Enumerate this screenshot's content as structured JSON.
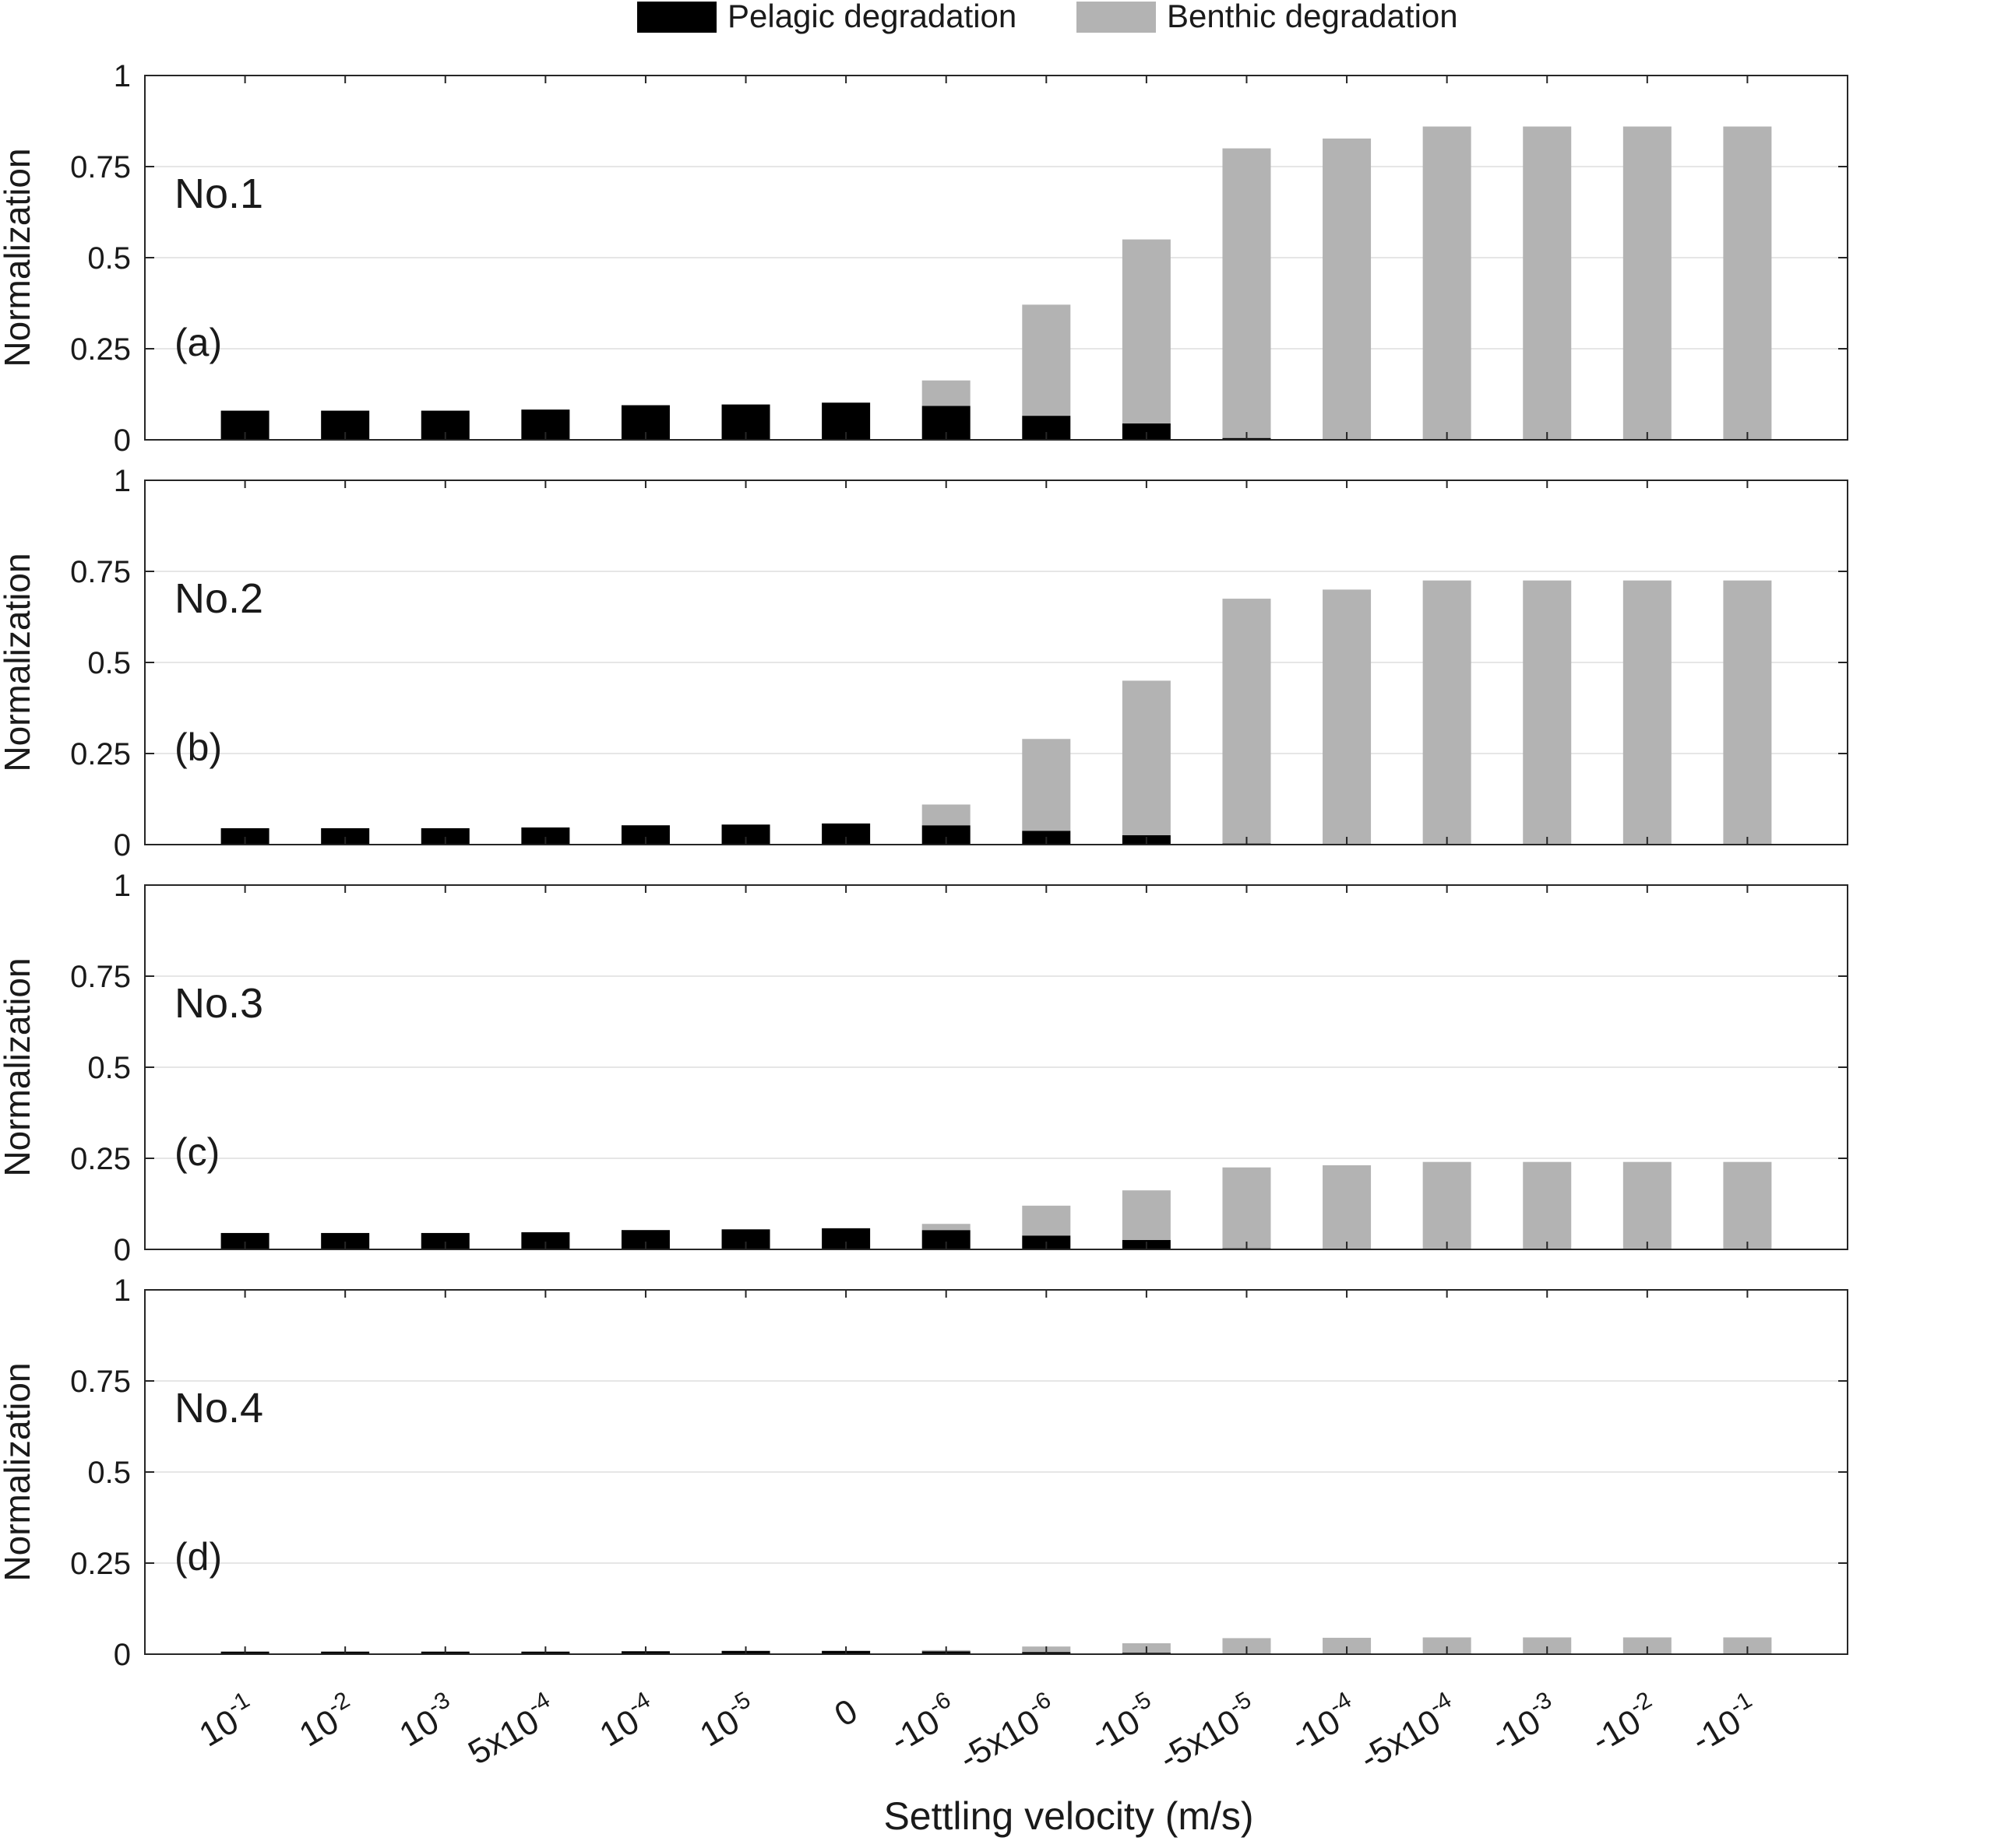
{
  "legend": {
    "placement": "top-center",
    "items": [
      {
        "label": "Pelagic degradation",
        "color": "#000000"
      },
      {
        "label": "Benthic degradation",
        "color": "#b3b3b3"
      }
    ]
  },
  "xlabel": "Settling velocity (m/s)",
  "chart_data": [
    {
      "type": "bar",
      "stacked": true,
      "panel_label": "(a)",
      "case_label": "No.1",
      "ylabel": "Normalization",
      "ylim": [
        0,
        1
      ],
      "yticks": [
        "0",
        "0.25",
        "0.5",
        "0.75",
        "1"
      ],
      "grid": "horizontal",
      "categories": [
        "10^-1",
        "10^-2",
        "10^-3",
        "5x10^-4",
        "10^-4",
        "10^-5",
        "0",
        "-10^-6",
        "-5x10^-6",
        "-10^-5",
        "-5x10^-5",
        "-10^-4",
        "-5x10^-4",
        "-10^-3",
        "-10^-2",
        "-10^-1"
      ],
      "series": [
        {
          "name": "Pelagic degradation",
          "color": "#000000",
          "values": [
            0.08,
            0.08,
            0.08,
            0.083,
            0.095,
            0.097,
            0.102,
            0.093,
            0.066,
            0.045,
            0.005,
            0.002,
            0,
            0,
            0,
            0
          ]
        },
        {
          "name": "Benthic degradation",
          "color": "#b3b3b3",
          "values": [
            0,
            0,
            0,
            0,
            0,
            0,
            0,
            0.07,
            0.305,
            0.505,
            0.795,
            0.825,
            0.86,
            0.86,
            0.86,
            0.86
          ]
        }
      ]
    },
    {
      "type": "bar",
      "stacked": true,
      "panel_label": "(b)",
      "case_label": "No.2",
      "ylabel": "Normalization",
      "ylim": [
        0,
        1
      ],
      "yticks": [
        "0",
        "0.25",
        "0.5",
        "0.75",
        "1"
      ],
      "grid": "horizontal",
      "categories": [
        "10^-1",
        "10^-2",
        "10^-3",
        "5x10^-4",
        "10^-4",
        "10^-5",
        "0",
        "-10^-6",
        "-5x10^-6",
        "-10^-5",
        "-5x10^-5",
        "-10^-4",
        "-5x10^-4",
        "-10^-3",
        "-10^-2",
        "-10^-1"
      ],
      "series": [
        {
          "name": "Pelagic degradation",
          "color": "#000000",
          "values": [
            0.045,
            0.045,
            0.045,
            0.047,
            0.053,
            0.055,
            0.058,
            0.053,
            0.038,
            0.026,
            0.003,
            0.001,
            0,
            0,
            0,
            0
          ]
        },
        {
          "name": "Benthic degradation",
          "color": "#b3b3b3",
          "values": [
            0,
            0,
            0,
            0,
            0,
            0,
            0,
            0.057,
            0.252,
            0.424,
            0.672,
            0.699,
            0.725,
            0.725,
            0.725,
            0.725
          ]
        }
      ]
    },
    {
      "type": "bar",
      "stacked": true,
      "panel_label": "(c)",
      "case_label": "No.3",
      "ylabel": "Normalization",
      "ylim": [
        0,
        1
      ],
      "yticks": [
        "0",
        "0.25",
        "0.5",
        "0.75",
        "1"
      ],
      "grid": "horizontal",
      "categories": [
        "10^-1",
        "10^-2",
        "10^-3",
        "5x10^-4",
        "10^-4",
        "10^-5",
        "0",
        "-10^-6",
        "-5x10^-6",
        "-10^-5",
        "-5x10^-5",
        "-10^-4",
        "-5x10^-4",
        "-10^-3",
        "-10^-2",
        "-10^-1"
      ],
      "series": [
        {
          "name": "Pelagic degradation",
          "color": "#000000",
          "values": [
            0.045,
            0.045,
            0.045,
            0.047,
            0.053,
            0.055,
            0.058,
            0.053,
            0.038,
            0.026,
            0.003,
            0.001,
            0,
            0,
            0,
            0
          ]
        },
        {
          "name": "Benthic degradation",
          "color": "#b3b3b3",
          "values": [
            0,
            0,
            0,
            0,
            0,
            0,
            0,
            0.017,
            0.082,
            0.136,
            0.222,
            0.23,
            0.24,
            0.24,
            0.24,
            0.24
          ]
        }
      ]
    },
    {
      "type": "bar",
      "stacked": true,
      "panel_label": "(d)",
      "case_label": "No.4",
      "ylabel": "Normalization",
      "ylim": [
        0,
        1
      ],
      "yticks": [
        "0",
        "0.25",
        "0.5",
        "0.75",
        "1"
      ],
      "grid": "horizontal",
      "categories": [
        "10^-1",
        "10^-2",
        "10^-3",
        "5x10^-4",
        "10^-4",
        "10^-5",
        "0",
        "-10^-6",
        "-5x10^-6",
        "-10^-5",
        "-5x10^-5",
        "-10^-4",
        "-5x10^-4",
        "-10^-3",
        "-10^-2",
        "-10^-1"
      ],
      "series": [
        {
          "name": "Pelagic degradation",
          "color": "#000000",
          "values": [
            0.007,
            0.007,
            0.007,
            0.007,
            0.008,
            0.009,
            0.009,
            0.008,
            0.006,
            0.004,
            0.001,
            0,
            0,
            0,
            0,
            0
          ]
        },
        {
          "name": "Benthic degradation",
          "color": "#b3b3b3",
          "values": [
            0,
            0,
            0,
            0,
            0,
            0,
            0,
            0.003,
            0.015,
            0.026,
            0.043,
            0.045,
            0.046,
            0.046,
            0.046,
            0.046
          ]
        }
      ]
    }
  ]
}
